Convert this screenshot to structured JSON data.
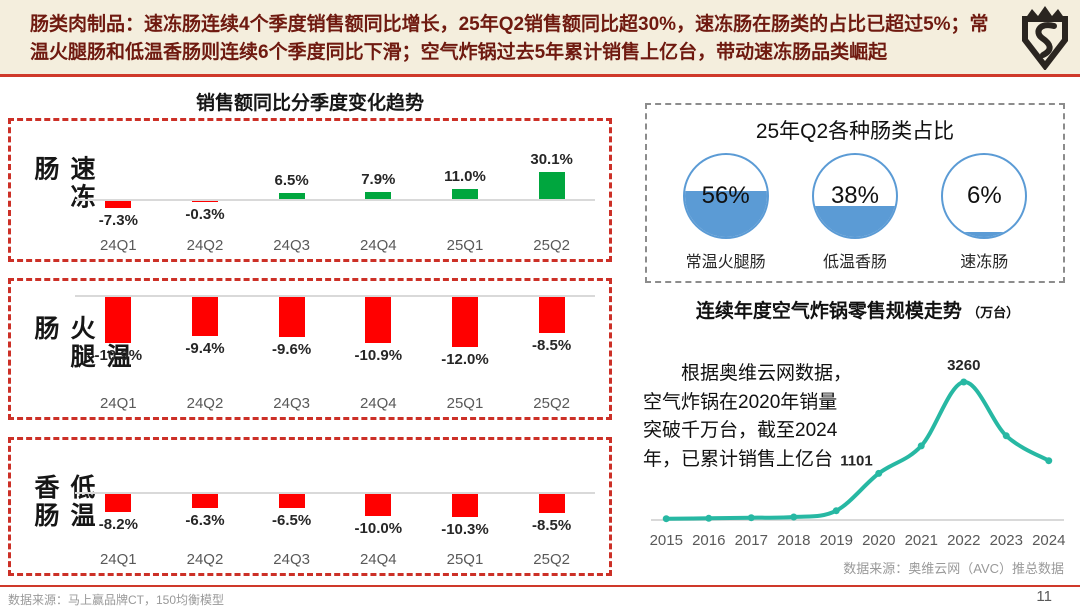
{
  "header": {
    "text": "肠类肉制品：速冻肠连续4个季度销售额同比增长，25年Q2销售额同比超30%，速冻肠在肠类的占比已超过5%；常温火腿肠和低温香肠则连续6个季度同比下滑；空气炸锅过去5年累计销售上亿台，带动速冻肠品类崛起",
    "logo": "brand-shield-logo"
  },
  "sales_trend": {
    "title": "销售额同比分季度变化趋势",
    "quarters": [
      "24Q1",
      "24Q2",
      "24Q3",
      "24Q4",
      "25Q1",
      "25Q2"
    ],
    "panels": [
      {
        "category": "速冻肠"
      },
      {
        "category": "常温火腿肠"
      },
      {
        "category": "低温香肠"
      }
    ]
  },
  "share_panel": {
    "title": "25年Q2各种肠类占比"
  },
  "airfryer": {
    "title": "连续年度空气炸锅零售规模走势",
    "title_unit": "（万台）",
    "annotation": "根据奥维云网数据，\n空气炸锅在2020年销量\n突破千万台，截至2024\n年，已累计销售上亿台",
    "source": "数据来源：奥维云网（AVC）推总数据"
  },
  "footer": {
    "source": "数据来源：马上赢品牌CT，150均衡模型",
    "page": "11"
  },
  "colors": {
    "positive_bar": "#00A63E",
    "negative_bar": "#FF0000",
    "panel_border_red": "#CC3027",
    "panel_border_gray": "#8C8C8C",
    "gauge_blue": "#5B9BD5",
    "line_teal": "#27B8A3",
    "header_bg": "#F4EEDD",
    "header_text": "#6F1A10",
    "divider_red": "#CF392A"
  },
  "chart_data": [
    {
      "type": "bar",
      "title": "销售额同比分季度变化趋势 - 速冻肠",
      "categories": [
        "24Q1",
        "24Q2",
        "24Q3",
        "24Q4",
        "25Q1",
        "25Q2"
      ],
      "values": [
        -7.3,
        -0.3,
        6.5,
        7.9,
        11.0,
        30.1
      ],
      "value_labels": [
        "-7.3%",
        "-0.3%",
        "6.5%",
        "7.9%",
        "11.0%",
        "30.1%"
      ],
      "ylabel": "销售额同比 %",
      "colors": {
        "positive": "#00A63E",
        "negative": "#FF0000"
      }
    },
    {
      "type": "bar",
      "title": "销售额同比分季度变化趋势 - 常温火腿肠",
      "categories": [
        "24Q1",
        "24Q2",
        "24Q3",
        "24Q4",
        "25Q1",
        "25Q2"
      ],
      "values": [
        -10.9,
        -9.4,
        -9.6,
        -10.9,
        -12.0,
        -8.5
      ],
      "value_labels": [
        "-10.9%",
        "-9.4%",
        "-9.6%",
        "-10.9%",
        "-12.0%",
        "-8.5%"
      ],
      "ylabel": "销售额同比 %",
      "colors": {
        "positive": "#00A63E",
        "negative": "#FF0000"
      }
    },
    {
      "type": "bar",
      "title": "销售额同比分季度变化趋势 - 低温香肠",
      "categories": [
        "24Q1",
        "24Q2",
        "24Q3",
        "24Q4",
        "25Q1",
        "25Q2"
      ],
      "values": [
        -8.2,
        -6.3,
        -6.5,
        -10.0,
        -10.3,
        -8.5
      ],
      "value_labels": [
        "-8.2%",
        "-6.3%",
        "-6.5%",
        "-10.0%",
        "-10.3%",
        "-8.5%"
      ],
      "ylabel": "销售额同比 %",
      "colors": {
        "positive": "#00A63E",
        "negative": "#FF0000"
      }
    },
    {
      "type": "pie",
      "title": "25年Q2各种肠类占比",
      "categories": [
        "常温火腿肠",
        "低温香肠",
        "速冻肠"
      ],
      "values": [
        56,
        38,
        6
      ],
      "value_labels": [
        "56%",
        "38%",
        "6%"
      ],
      "style": "water-fill-circle"
    },
    {
      "type": "line",
      "title": "连续年度空气炸锅零售规模走势",
      "ylabel": "万台",
      "x": [
        2015,
        2016,
        2017,
        2018,
        2019,
        2020,
        2021,
        2022,
        2023,
        2024
      ],
      "values": [
        30,
        40,
        55,
        70,
        220,
        1101,
        1750,
        3260,
        1990,
        1400
      ],
      "labeled_points": [
        {
          "x": 2020,
          "label": "1101"
        },
        {
          "x": 2022,
          "label": "3260"
        }
      ],
      "ylim": [
        0,
        3400
      ],
      "grid": false,
      "legend": false
    }
  ]
}
